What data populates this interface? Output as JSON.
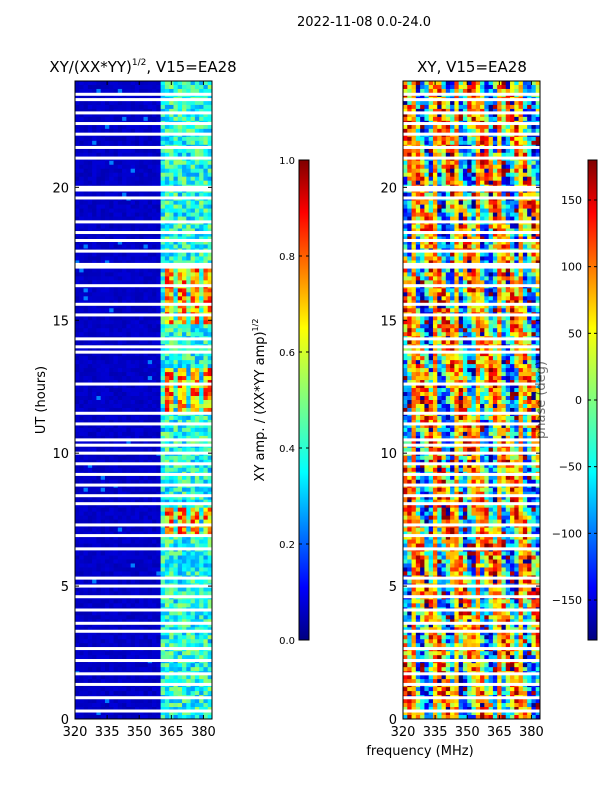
{
  "header": {
    "date_range": "2022-11-08 0.0-24.0"
  },
  "chart_data": [
    {
      "type": "heatmap",
      "title_prefix": "XY/(XX*YY)",
      "title_exponent": "1/2",
      "title_suffix": ", V15=EA28",
      "xlabel": "",
      "ylabel": "UT (hours)",
      "xlim": [
        320,
        384
      ],
      "ylim": [
        0,
        24
      ],
      "xticks": [
        320,
        335,
        350,
        365,
        380
      ],
      "yticks": [
        0,
        5,
        10,
        15,
        20
      ],
      "colormap": "jet",
      "colorbar": {
        "label_prefix": "XY amp. / (XX*YY amp)",
        "label_exponent": "1/2",
        "range": [
          0.0,
          1.0
        ],
        "ticks": [
          "0.0",
          "0.2",
          "0.4",
          "0.6",
          "0.8",
          "1.0"
        ]
      },
      "low_value_region": {
        "x": [
          320,
          361
        ],
        "value": 0.05
      },
      "high_value_region": {
        "x": [
          361,
          384
        ],
        "value": 0.4
      },
      "hot_hours": [
        [
          6.9,
          8.0
        ],
        [
          11.6,
          13.2
        ],
        [
          14.9,
          16.9
        ]
      ]
    },
    {
      "type": "heatmap",
      "title": "XY, V15=EA28",
      "xlabel": "frequency (MHz)",
      "ylabel": "",
      "xlim": [
        320,
        384
      ],
      "ylim": [
        0,
        24
      ],
      "xticks": [
        320,
        335,
        350,
        365,
        380
      ],
      "yticks": [
        0,
        5,
        10,
        15,
        20
      ],
      "colormap": "jet",
      "colorbar": {
        "label": "phase (deg)",
        "range": [
          -180,
          180
        ],
        "ticks": [
          "−150",
          "−100",
          "−50",
          "0",
          "50",
          "100",
          "150"
        ]
      }
    }
  ],
  "flagged_hours": [
    0.3,
    0.8,
    1.3,
    1.7,
    2.2,
    2.65,
    3.3,
    3.6,
    4.1,
    4.6,
    5.0,
    5.3,
    6.4,
    6.9,
    7.3,
    8.1,
    8.4,
    8.8,
    9.2,
    9.6,
    10.0,
    10.3,
    10.5,
    11.1,
    11.5,
    12.6,
    13.8,
    14.0,
    14.3,
    15.2,
    15.6,
    16.3,
    17.0,
    17.1,
    17.6,
    18.0,
    18.3,
    18.7,
    19.6,
    19.9,
    20.0,
    21.1,
    21.5,
    22.0,
    22.4,
    22.8,
    23.3,
    23.5
  ]
}
